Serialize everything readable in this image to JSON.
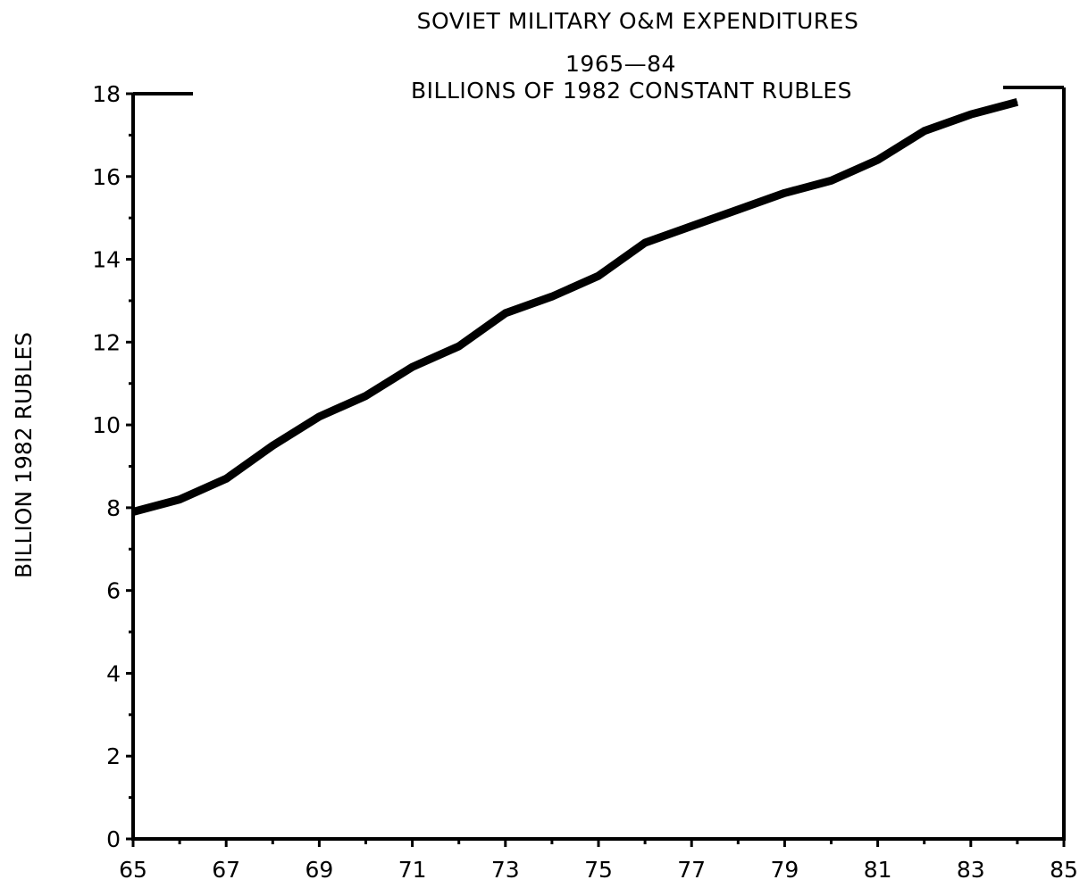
{
  "chart_data": {
    "type": "line",
    "title": "SOVIET MILITARY O&M EXPENDITURES",
    "subtitle_years": "1965—84",
    "subtitle_units": "BILLIONS OF 1982 CONSTANT RUBLES",
    "xlabel": "",
    "ylabel": "BILLION 1982 RUBLES",
    "xlim": [
      65,
      85
    ],
    "ylim": [
      0,
      18
    ],
    "x_ticks": [
      "65",
      "67",
      "69",
      "71",
      "73",
      "75",
      "77",
      "79",
      "81",
      "83",
      "85"
    ],
    "y_ticks": [
      "0",
      "2",
      "4",
      "6",
      "8",
      "10",
      "12",
      "14",
      "16",
      "18"
    ],
    "grid": false,
    "series": [
      {
        "x": [
          65,
          66,
          67,
          68,
          69,
          70,
          71,
          72,
          73,
          74,
          75,
          76,
          77,
          78,
          79,
          80,
          81,
          82,
          83,
          84
        ],
        "values": [
          7.9,
          8.2,
          8.7,
          9.5,
          10.2,
          10.7,
          11.4,
          11.9,
          12.7,
          13.1,
          13.6,
          14.4,
          14.8,
          15.2,
          15.6,
          15.9,
          16.4,
          17.1,
          17.5,
          17.8
        ]
      }
    ]
  }
}
